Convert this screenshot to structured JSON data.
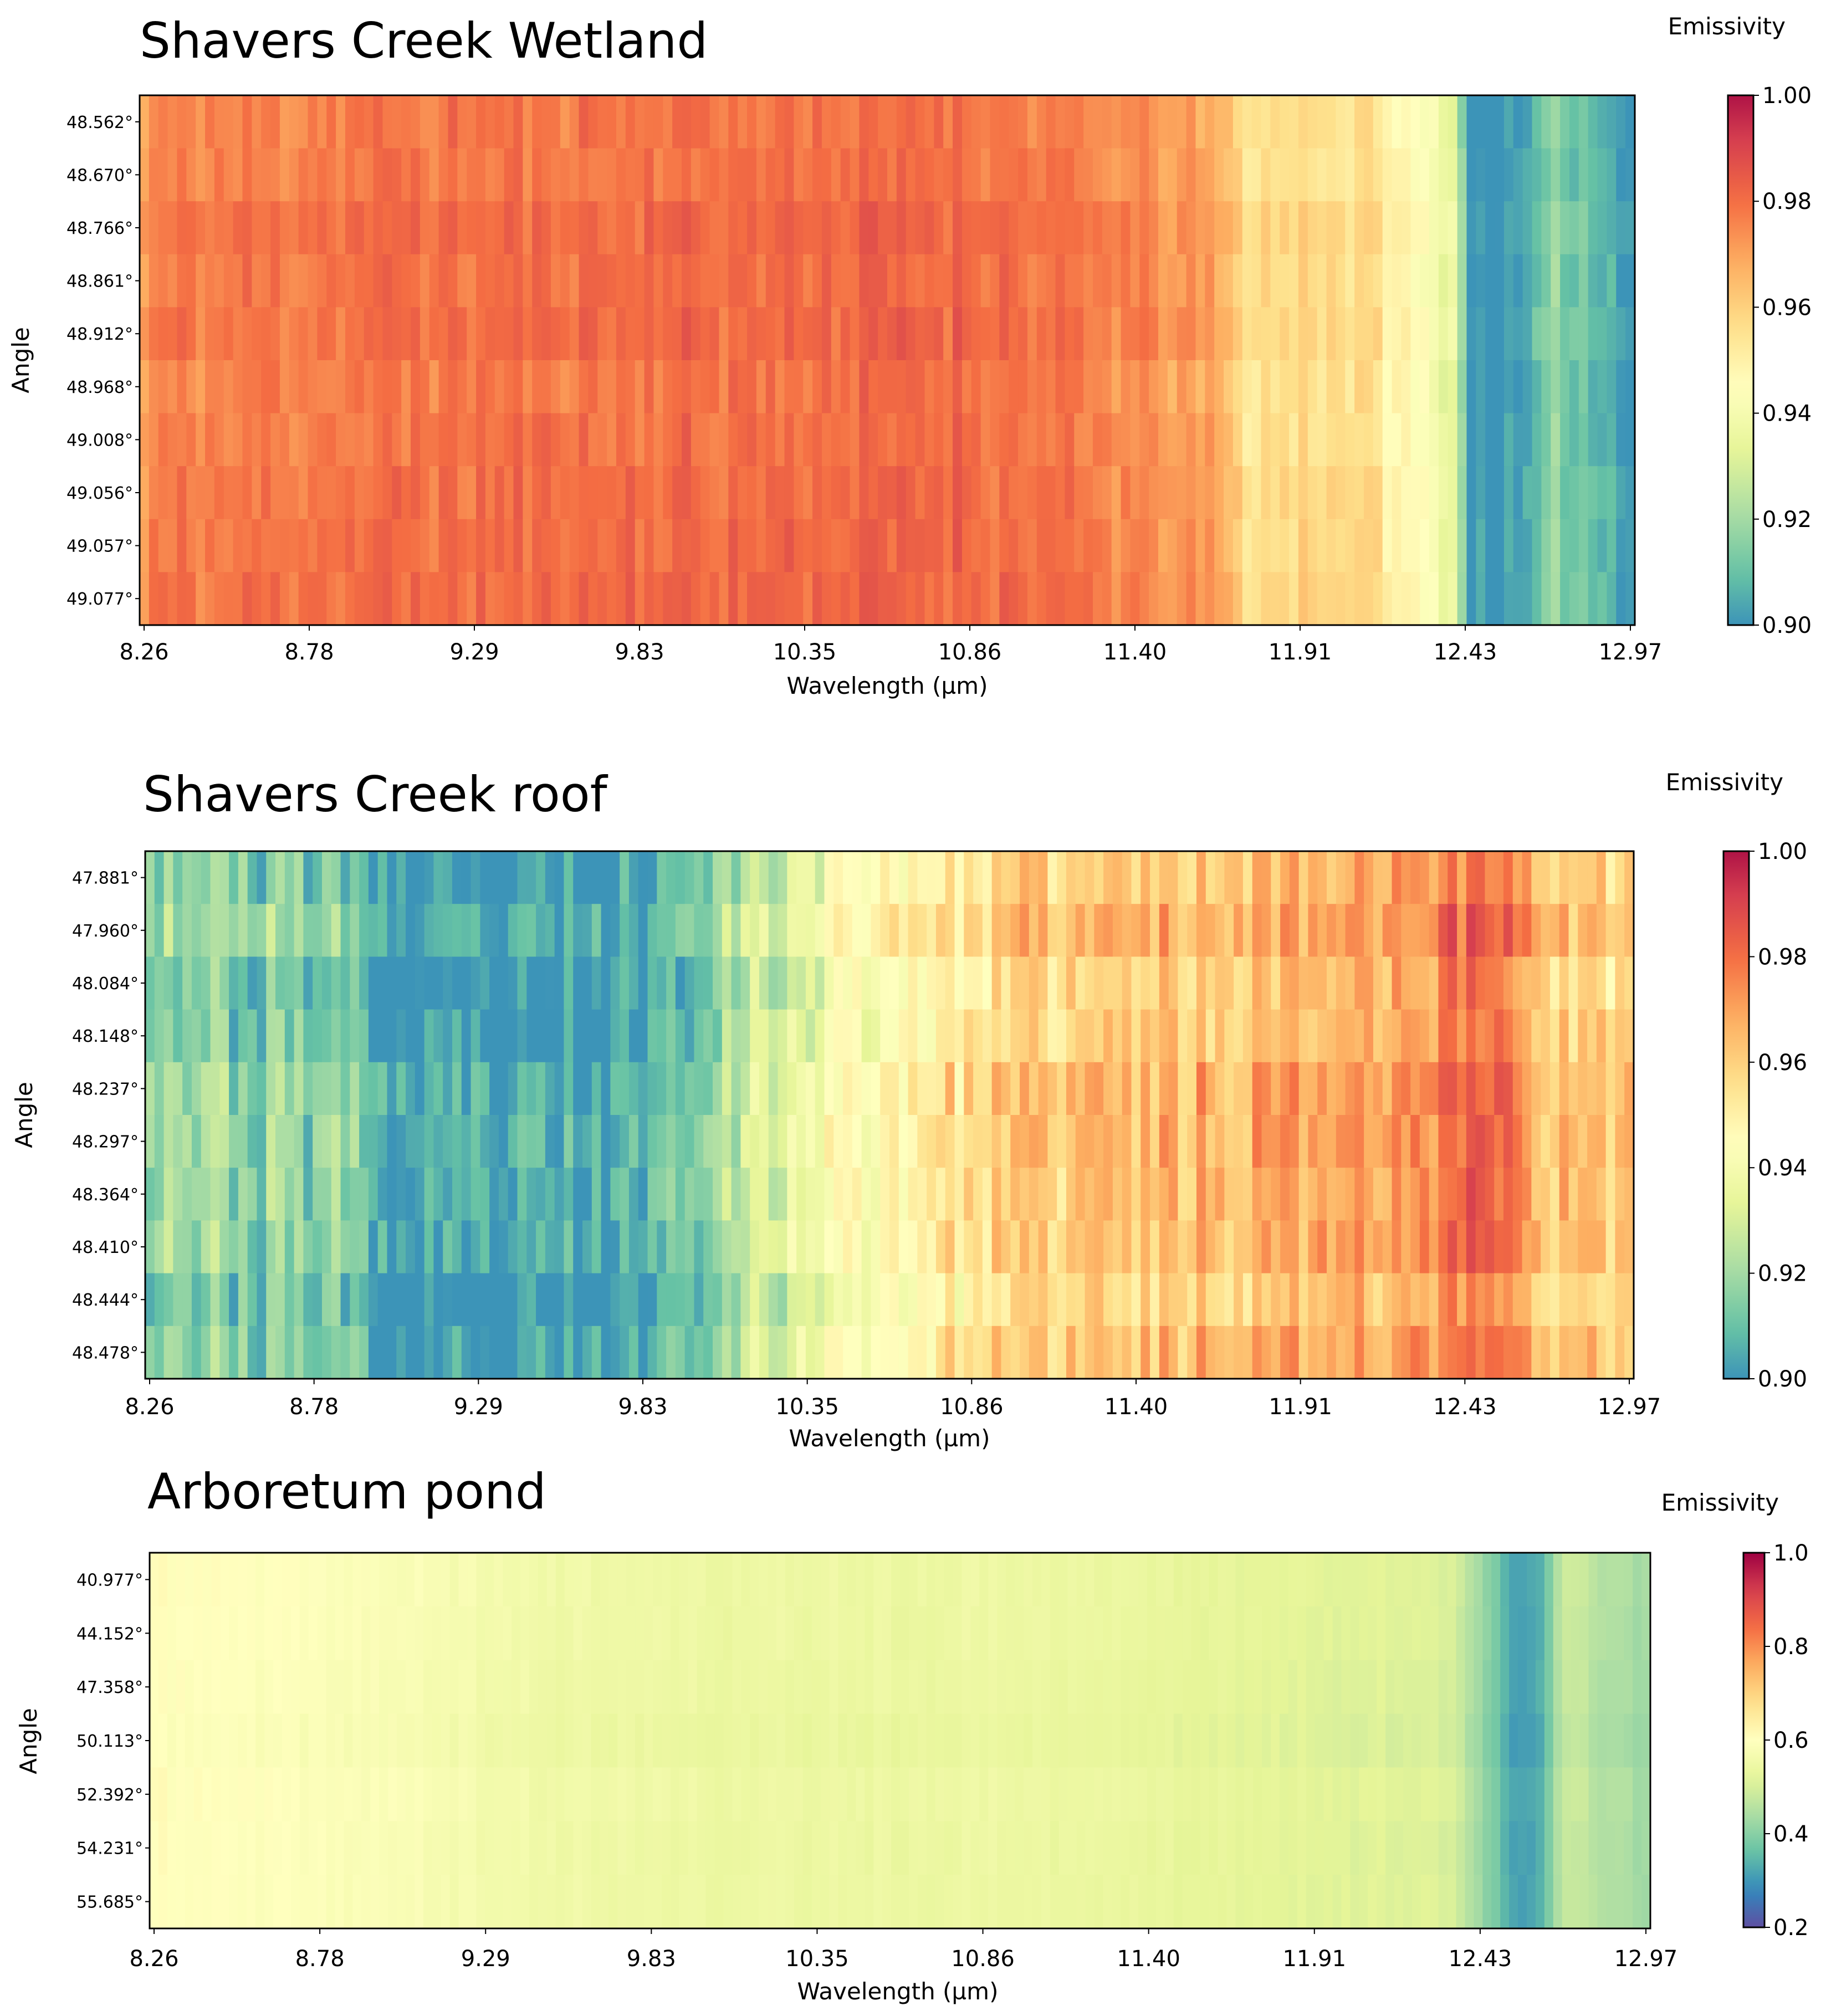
{
  "figure": {
    "colormap": {
      "name": "Spectral (reversed)",
      "low_color": "#5e4fa2",
      "high_color": "#9e0142",
      "stops": [
        "#5e4fa2",
        "#3288bd",
        "#66c2a5",
        "#abdda4",
        "#e6f598",
        "#ffffbf",
        "#fee08b",
        "#fdae61",
        "#f46d43",
        "#d53e4f",
        "#9e0142"
      ]
    }
  },
  "chart_data": [
    {
      "type": "heatmap",
      "title": "Shavers Creek Wetland",
      "xlabel": "Wavelength (µm)",
      "ylabel": "Angle",
      "x_ticks": [
        "8.26",
        "8.78",
        "9.29",
        "9.83",
        "10.35",
        "10.86",
        "11.40",
        "11.91",
        "12.43",
        "12.97"
      ],
      "xlim": [
        8.26,
        12.97
      ],
      "rows": [
        "48.562°",
        "48.670°",
        "48.766°",
        "48.861°",
        "48.912°",
        "48.968°",
        "49.008°",
        "49.056°",
        "49.057°",
        "49.077°"
      ],
      "colorbar": {
        "label": "Emissivity",
        "vmin": 0.9,
        "vmax": 1.0,
        "ticks": [
          "0.90",
          "0.92",
          "0.94",
          "0.96",
          "0.98",
          "1.00"
        ],
        "cmap_range": [
          0.12,
          0.97
        ]
      },
      "profile": [
        [
          8.26,
          0.966
        ],
        [
          8.3,
          0.975
        ],
        [
          9.0,
          0.978
        ],
        [
          10.86,
          0.98
        ],
        [
          11.3,
          0.975
        ],
        [
          11.65,
          0.968
        ],
        [
          11.75,
          0.955
        ],
        [
          11.95,
          0.957
        ],
        [
          12.15,
          0.955
        ],
        [
          12.25,
          0.945
        ],
        [
          12.4,
          0.935
        ],
        [
          12.45,
          0.9
        ],
        [
          12.62,
          0.9
        ],
        [
          12.72,
          0.915
        ],
        [
          12.9,
          0.905
        ],
        [
          12.97,
          0.9
        ]
      ],
      "noise": 0.006,
      "seed": 11
    },
    {
      "type": "heatmap",
      "title": "Shavers Creek roof",
      "xlabel": "Wavelength (µm)",
      "ylabel": "Angle",
      "x_ticks": [
        "8.26",
        "8.78",
        "9.29",
        "9.83",
        "10.35",
        "10.86",
        "11.40",
        "11.91",
        "12.43",
        "12.97"
      ],
      "xlim": [
        8.26,
        12.97
      ],
      "rows": [
        "47.881°",
        "47.960°",
        "48.084°",
        "48.148°",
        "48.237°",
        "48.297°",
        "48.364°",
        "48.410°",
        "48.444°",
        "48.478°"
      ],
      "colorbar": {
        "label": "Emissivity",
        "vmin": 0.9,
        "vmax": 1.0,
        "ticks": [
          "0.90",
          "0.92",
          "0.94",
          "0.96",
          "0.98",
          "1.00"
        ],
        "cmap_range": [
          0.12,
          0.97
        ]
      },
      "profile": [
        [
          8.26,
          0.918
        ],
        [
          8.6,
          0.912
        ],
        [
          8.95,
          0.91
        ],
        [
          9.02,
          0.896
        ],
        [
          9.75,
          0.898
        ],
        [
          9.95,
          0.907
        ],
        [
          10.05,
          0.918
        ],
        [
          10.3,
          0.93
        ],
        [
          10.6,
          0.945
        ],
        [
          11.0,
          0.955
        ],
        [
          11.4,
          0.96
        ],
        [
          11.9,
          0.965
        ],
        [
          12.3,
          0.97
        ],
        [
          12.55,
          0.98
        ],
        [
          12.7,
          0.96
        ],
        [
          12.97,
          0.955
        ]
      ],
      "noise": 0.012,
      "seed": 23
    },
    {
      "type": "heatmap",
      "title": "Arboretum pond",
      "xlabel": "Wavelength (µm)",
      "ylabel": "Angle",
      "x_ticks": [
        "8.26",
        "8.78",
        "9.29",
        "9.83",
        "10.35",
        "10.86",
        "11.40",
        "11.91",
        "12.43",
        "12.97"
      ],
      "xlim": [
        8.26,
        12.97
      ],
      "rows": [
        "40.977°",
        "44.152°",
        "47.358°",
        "50.113°",
        "52.392°",
        "54.231°",
        "55.685°"
      ],
      "colorbar": {
        "label": "Emissivity",
        "vmin": 0.2,
        "vmax": 1.0,
        "ticks": [
          "0.2",
          "0.4",
          "0.6",
          "0.8",
          "1.0"
        ],
        "cmap_range": [
          0.0,
          1.0
        ]
      },
      "profile": [
        [
          8.26,
          0.6
        ],
        [
          9.0,
          0.58
        ],
        [
          9.5,
          0.55
        ],
        [
          10.0,
          0.54
        ],
        [
          11.0,
          0.54
        ],
        [
          11.8,
          0.52
        ],
        [
          12.35,
          0.5
        ],
        [
          12.48,
          0.38
        ],
        [
          12.55,
          0.3
        ],
        [
          12.62,
          0.33
        ],
        [
          12.7,
          0.48
        ],
        [
          12.97,
          0.42
        ]
      ],
      "noise": 0.012,
      "seed": 37
    }
  ]
}
